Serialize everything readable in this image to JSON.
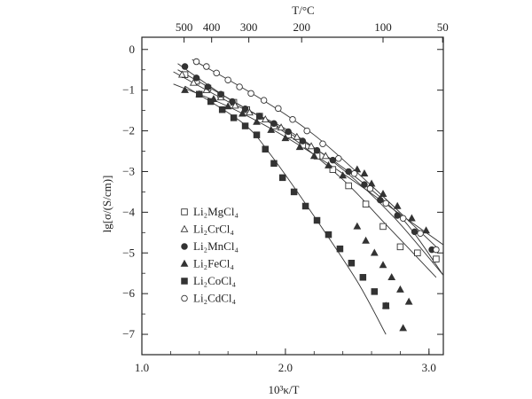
{
  "chart_data": {
    "type": "scatter",
    "title": "",
    "xlabel": "10³κ/T",
    "ylabel": "lg[σ/(S/cm)]",
    "top_axis_label": "T/°C",
    "xlim": [
      1.0,
      3.1
    ],
    "ylim": [
      -7.5,
      0.3
    ],
    "x_ticks": [
      1.0,
      2.0,
      3.0
    ],
    "x_tick_labels": [
      "1.0",
      "2.0",
      "3.0"
    ],
    "y_ticks": [
      0,
      -1,
      -2,
      -3,
      -4,
      -5,
      -6,
      -7
    ],
    "y_tick_labels": [
      "0",
      "−1",
      "−2",
      "−3",
      "−4",
      "−5",
      "−6",
      "−7"
    ],
    "top_ticks": [
      {
        "label": "500",
        "x": 1.294
      },
      {
        "label": "400",
        "x": 1.486
      },
      {
        "label": "300",
        "x": 1.745
      },
      {
        "label": "200",
        "x": 2.113
      },
      {
        "label": "100",
        "x": 2.68
      },
      {
        "label": "50",
        "x": 3.095
      }
    ],
    "grid": false,
    "legend_position": "lower-left inside plot",
    "series": [
      {
        "name": "Li₂MgCl₄",
        "marker": "square-open",
        "points": [
          [
            1.3,
            -0.62
          ],
          [
            1.38,
            -0.78
          ],
          [
            1.46,
            -0.95
          ],
          [
            1.55,
            -1.12
          ],
          [
            1.64,
            -1.3
          ],
          [
            1.73,
            -1.48
          ],
          [
            1.82,
            -1.64
          ],
          [
            1.92,
            -1.88
          ],
          [
            2.02,
            -2.1
          ],
          [
            2.12,
            -2.35
          ],
          [
            2.22,
            -2.62
          ],
          [
            2.33,
            -2.95
          ],
          [
            2.44,
            -3.35
          ],
          [
            2.56,
            -3.8
          ],
          [
            2.68,
            -4.35
          ],
          [
            2.8,
            -4.85
          ],
          [
            2.92,
            -5.0
          ],
          [
            3.05,
            -5.15
          ]
        ],
        "fit": [
          [
            1.25,
            -0.5
          ],
          [
            1.6,
            -1.2
          ],
          [
            2.0,
            -2.05
          ],
          [
            2.4,
            -3.2
          ],
          [
            2.7,
            -4.3
          ],
          [
            3.05,
            -5.6
          ]
        ]
      },
      {
        "name": "Li₂CrCl₄",
        "marker": "triangle-open",
        "points": [
          [
            1.28,
            -0.62
          ],
          [
            1.36,
            -0.82
          ],
          [
            1.45,
            -1.0
          ],
          [
            1.55,
            -1.18
          ],
          [
            1.65,
            -1.38
          ],
          [
            1.75,
            -1.55
          ],
          [
            1.86,
            -1.72
          ],
          [
            1.97,
            -1.92
          ],
          [
            2.08,
            -2.15
          ],
          [
            2.18,
            -2.38
          ],
          [
            2.28,
            -2.62
          ]
        ],
        "fit": [
          [
            1.22,
            -0.55
          ],
          [
            1.6,
            -1.28
          ],
          [
            2.0,
            -1.95
          ],
          [
            2.4,
            -2.95
          ],
          [
            2.75,
            -4.1
          ],
          [
            3.1,
            -5.55
          ]
        ]
      },
      {
        "name": "Li₂MnCl₄",
        "marker": "circle-filled",
        "points": [
          [
            1.3,
            -0.42
          ],
          [
            1.38,
            -0.7
          ],
          [
            1.46,
            -0.92
          ],
          [
            1.55,
            -1.1
          ],
          [
            1.63,
            -1.28
          ],
          [
            1.72,
            -1.46
          ],
          [
            1.82,
            -1.64
          ],
          [
            1.92,
            -1.82
          ],
          [
            2.02,
            -2.02
          ],
          [
            2.12,
            -2.25
          ],
          [
            2.22,
            -2.48
          ],
          [
            2.33,
            -2.72
          ],
          [
            2.44,
            -3.0
          ],
          [
            2.55,
            -3.32
          ],
          [
            2.66,
            -3.7
          ],
          [
            2.78,
            -4.08
          ],
          [
            2.9,
            -4.48
          ],
          [
            3.02,
            -4.92
          ]
        ],
        "fit": [
          [
            1.25,
            -0.35
          ],
          [
            1.6,
            -1.2
          ],
          [
            2.0,
            -2.0
          ],
          [
            2.4,
            -2.9
          ],
          [
            2.8,
            -4.1
          ],
          [
            3.1,
            -5.55
          ]
        ]
      },
      {
        "name": "Li₂FeCl₄",
        "marker": "triangle-filled",
        "points": [
          [
            1.3,
            -1.0
          ],
          [
            1.4,
            -1.1
          ],
          [
            1.5,
            -1.22
          ],
          [
            1.6,
            -1.4
          ],
          [
            1.7,
            -1.58
          ],
          [
            1.8,
            -1.78
          ],
          [
            1.9,
            -1.98
          ],
          [
            2.0,
            -2.18
          ],
          [
            2.1,
            -2.4
          ],
          [
            2.2,
            -2.62
          ],
          [
            2.3,
            -2.85
          ],
          [
            2.4,
            -3.1
          ],
          [
            2.5,
            -2.95
          ],
          [
            2.55,
            -3.05
          ],
          [
            2.6,
            -3.3
          ],
          [
            2.68,
            -3.55
          ],
          [
            2.78,
            -3.85
          ],
          [
            2.88,
            -4.15
          ],
          [
            2.98,
            -4.45
          ],
          [
            2.5,
            -4.35
          ],
          [
            2.56,
            -4.7
          ],
          [
            2.62,
            -5.0
          ],
          [
            2.68,
            -5.3
          ],
          [
            2.74,
            -5.6
          ],
          [
            2.8,
            -5.9
          ],
          [
            2.86,
            -6.2
          ],
          [
            2.7,
            -6.3
          ],
          [
            2.82,
            -6.85
          ]
        ],
        "fit": [
          [
            1.22,
            -0.85
          ],
          [
            1.6,
            -1.4
          ],
          [
            2.0,
            -2.15
          ],
          [
            2.4,
            -3.05
          ],
          [
            2.8,
            -4.05
          ],
          [
            3.1,
            -4.8
          ]
        ]
      },
      {
        "name": "Li₂CoCl₄",
        "marker": "square-filled",
        "points": [
          [
            1.4,
            -1.1
          ],
          [
            1.48,
            -1.28
          ],
          [
            1.56,
            -1.48
          ],
          [
            1.64,
            -1.68
          ],
          [
            1.72,
            -1.88
          ],
          [
            1.8,
            -2.1
          ],
          [
            1.86,
            -2.45
          ],
          [
            1.92,
            -2.8
          ],
          [
            1.98,
            -3.15
          ],
          [
            2.06,
            -3.5
          ],
          [
            2.14,
            -3.85
          ],
          [
            2.22,
            -4.2
          ],
          [
            2.3,
            -4.55
          ],
          [
            2.38,
            -4.9
          ],
          [
            2.46,
            -5.25
          ],
          [
            2.54,
            -5.6
          ],
          [
            2.62,
            -5.95
          ],
          [
            2.7,
            -6.3
          ]
        ],
        "fit": [
          [
            1.3,
            -0.9
          ],
          [
            1.7,
            -1.8
          ],
          [
            1.9,
            -2.6
          ],
          [
            2.2,
            -4.1
          ],
          [
            2.5,
            -5.7
          ],
          [
            2.7,
            -7.0
          ]
        ]
      },
      {
        "name": "Li₂CdCl₄",
        "marker": "circle-open",
        "points": [
          [
            1.38,
            -0.3
          ],
          [
            1.45,
            -0.42
          ],
          [
            1.52,
            -0.58
          ],
          [
            1.6,
            -0.75
          ],
          [
            1.68,
            -0.92
          ],
          [
            1.76,
            -1.08
          ],
          [
            1.85,
            -1.25
          ],
          [
            1.95,
            -1.45
          ],
          [
            2.05,
            -1.72
          ],
          [
            2.15,
            -2.0
          ],
          [
            2.26,
            -2.32
          ],
          [
            2.37,
            -2.68
          ],
          [
            2.48,
            -3.05
          ],
          [
            2.59,
            -3.42
          ],
          [
            2.7,
            -3.78
          ],
          [
            2.82,
            -4.15
          ],
          [
            2.94,
            -4.52
          ],
          [
            3.05,
            -4.92
          ]
        ],
        "fit": [
          [
            1.35,
            -0.25
          ],
          [
            1.8,
            -1.15
          ],
          [
            2.2,
            -2.1
          ],
          [
            2.6,
            -3.35
          ],
          [
            2.9,
            -4.35
          ],
          [
            3.05,
            -4.85
          ]
        ]
      }
    ]
  }
}
